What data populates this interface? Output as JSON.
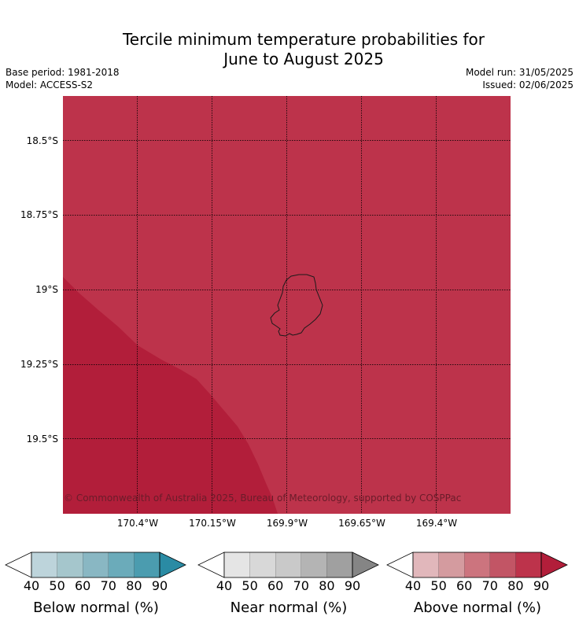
{
  "title_line1": "Tercile minimum temperature probabilities for",
  "title_line2": "June to August 2025",
  "base_period": "Base period: 1981-2018",
  "model": "Model: ACCESS-S2",
  "model_run": "Model run: 31/05/2025",
  "issued": "Issued: 02/06/2025",
  "copyright": "© Commonwealth of Australia 2025, Bureau of Meteorology, supported by COSPPac",
  "lat_labels": [
    "18.5°S",
    "18.75°S",
    "19°S",
    "19.25°S",
    "19.5°S"
  ],
  "lon_labels": [
    "170.4°W",
    "170.15°W",
    "169.9°W",
    "169.65°W",
    "169.4°W"
  ],
  "map_colors": {
    "above_80": "#bd334b",
    "above_90": "#b21e3a",
    "coastline": "#1a1a1a"
  },
  "region_values": [
    {
      "category": "Above normal",
      "probability_band": "80-90"
    },
    {
      "category": "Above normal",
      "probability_band": "90+"
    }
  ],
  "colorbars": [
    {
      "title": "Below normal (%)",
      "ticks": [
        "40",
        "50",
        "60",
        "70",
        "80",
        "90"
      ],
      "colors": [
        "#ffffff",
        "#bdd4db",
        "#a5c6cc",
        "#89b7c3",
        "#6babba",
        "#4b9caf",
        "#2a8ba4"
      ]
    },
    {
      "title": "Near normal (%)",
      "ticks": [
        "40",
        "50",
        "60",
        "70",
        "80",
        "90"
      ],
      "colors": [
        "#ffffff",
        "#e5e5e5",
        "#d8d8d8",
        "#c9c9c9",
        "#b4b4b4",
        "#a0a0a0",
        "#858585"
      ]
    },
    {
      "title": "Above normal (%)",
      "ticks": [
        "40",
        "50",
        "60",
        "70",
        "80",
        "90"
      ],
      "colors": [
        "#ffffff",
        "#e1b7bb",
        "#d49b9f",
        "#cc747e",
        "#c25565",
        "#bd334b",
        "#b21e3a"
      ]
    }
  ]
}
